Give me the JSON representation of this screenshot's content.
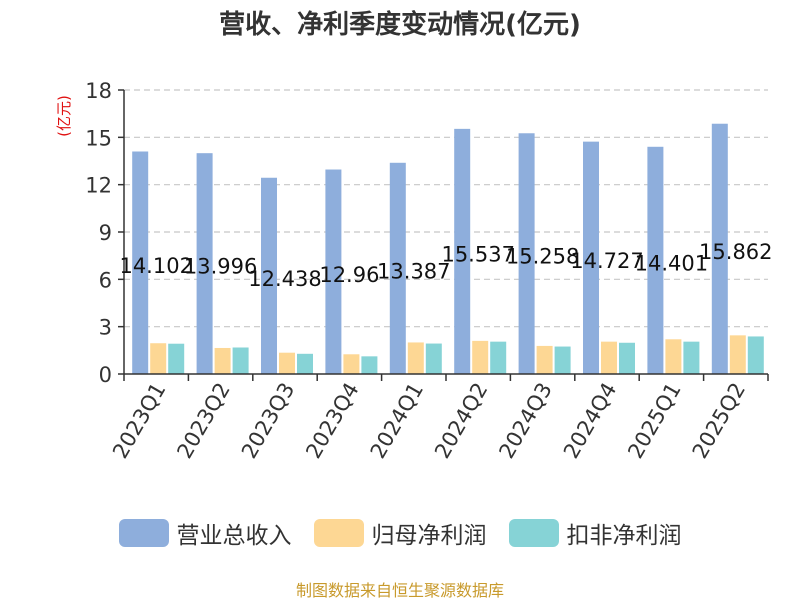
{
  "chart_data": {
    "type": "bar",
    "title": "营收、净利季度变动情况(亿元)",
    "ylabel": "(亿元)",
    "xlabel": "",
    "ylim": [
      0,
      18
    ],
    "yticks": [
      0,
      3,
      6,
      9,
      12,
      15,
      18
    ],
    "grid": true,
    "legend_position": "bottom",
    "categories": [
      "2023Q1",
      "2023Q2",
      "2023Q3",
      "2023Q4",
      "2024Q1",
      "2024Q2",
      "2024Q3",
      "2024Q4",
      "2025Q1",
      "2025Q2"
    ],
    "series": [
      {
        "name": "营业总收入",
        "color": "#8eaedc",
        "values": [
          14.102,
          13.996,
          12.438,
          12.96,
          13.387,
          15.537,
          15.258,
          14.727,
          14.401,
          15.862
        ],
        "labels": [
          "14.102",
          "13.996",
          "12.438",
          "12.96",
          "13.387",
          "15.537",
          "15.258",
          "14.727",
          "14.401",
          "15.862"
        ]
      },
      {
        "name": "归母净利润",
        "color": "#fdd794",
        "values": [
          1.95,
          1.65,
          1.35,
          1.25,
          2.0,
          2.1,
          1.78,
          2.05,
          2.2,
          2.45
        ]
      },
      {
        "name": "扣非净利润",
        "color": "#86d3d6",
        "values": [
          1.92,
          1.68,
          1.28,
          1.12,
          1.93,
          2.05,
          1.74,
          1.98,
          2.05,
          2.38
        ]
      }
    ]
  },
  "source": "制图数据来自恒生聚源数据库"
}
